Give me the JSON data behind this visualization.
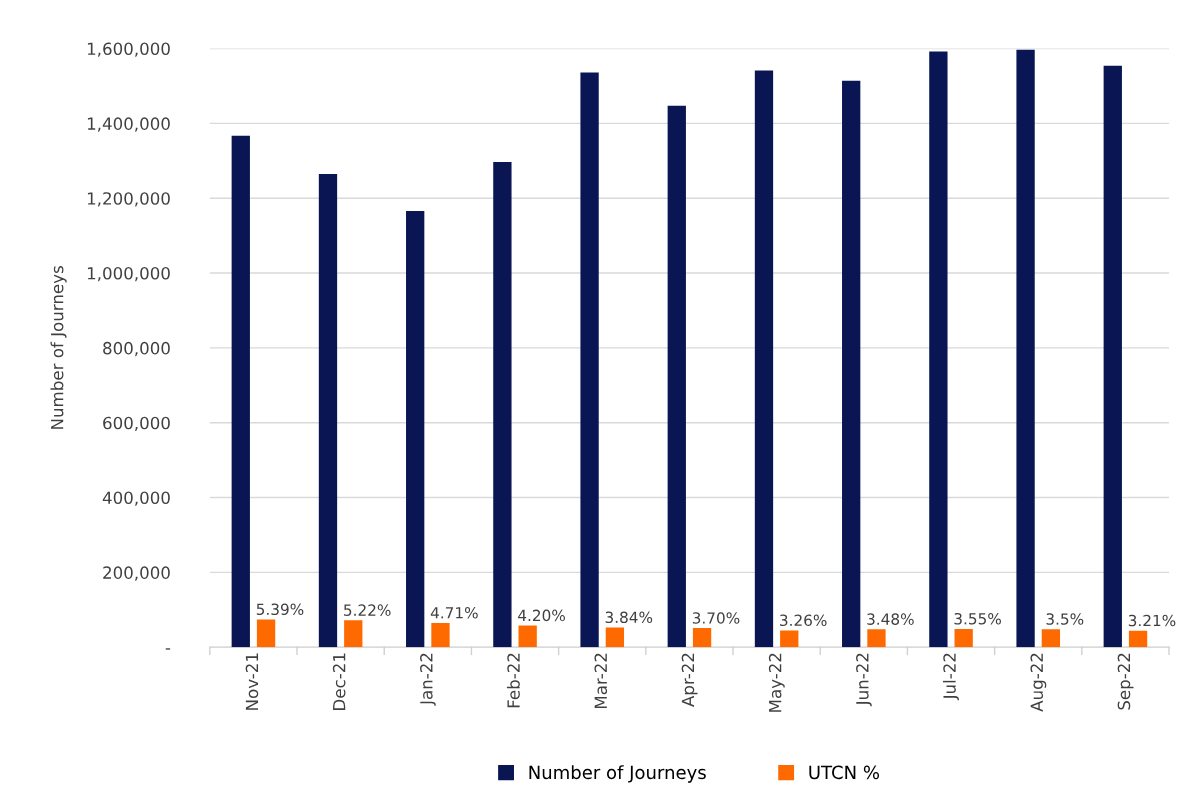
{
  "chart_data": {
    "type": "bar",
    "ylabel": "Number of Journeys",
    "categories": [
      "Nov-21",
      "Dec-21",
      "Jan-22",
      "Feb-22",
      "Mar-22",
      "Apr-22",
      "May-22",
      "Jun-22",
      "Jul-22",
      "Aug-22",
      "Sep-22"
    ],
    "series": [
      {
        "name": "Number of Journeys",
        "color": "#0a1653",
        "values": [
          1367000,
          1265000,
          1166000,
          1297000,
          1536000,
          1447000,
          1541000,
          1514000,
          1592000,
          1597000,
          1554000
        ]
      },
      {
        "name": "UTCN %",
        "color": "#ff6a00",
        "axis": "y2",
        "values": [
          5.39,
          5.22,
          4.71,
          4.2,
          3.84,
          3.7,
          3.26,
          3.48,
          3.55,
          3.5,
          3.21
        ],
        "value_labels": [
          "5.39%",
          "5.22%",
          "4.71%",
          "4.20%",
          "3.84%",
          "3.70%",
          "3.26%",
          "3.48%",
          "3.55%",
          "3.5%",
          "3.21%"
        ]
      }
    ],
    "ylim": [
      0,
      1600000
    ],
    "y2lim": [
      0,
      116
    ],
    "yticks": [
      {
        "value": 0,
        "label": "-"
      },
      {
        "value": 200000,
        "label": "200,000"
      },
      {
        "value": 400000,
        "label": "400,000"
      },
      {
        "value": 600000,
        "label": "600,000"
      },
      {
        "value": 800000,
        "label": "800,000"
      },
      {
        "value": 1000000,
        "label": "1,000,000"
      },
      {
        "value": 1200000,
        "label": "1,200,000"
      },
      {
        "value": 1400000,
        "label": "1,400,000"
      },
      {
        "value": 1600000,
        "label": "1,600,000"
      }
    ],
    "grid": "y",
    "legend": "bottom"
  }
}
